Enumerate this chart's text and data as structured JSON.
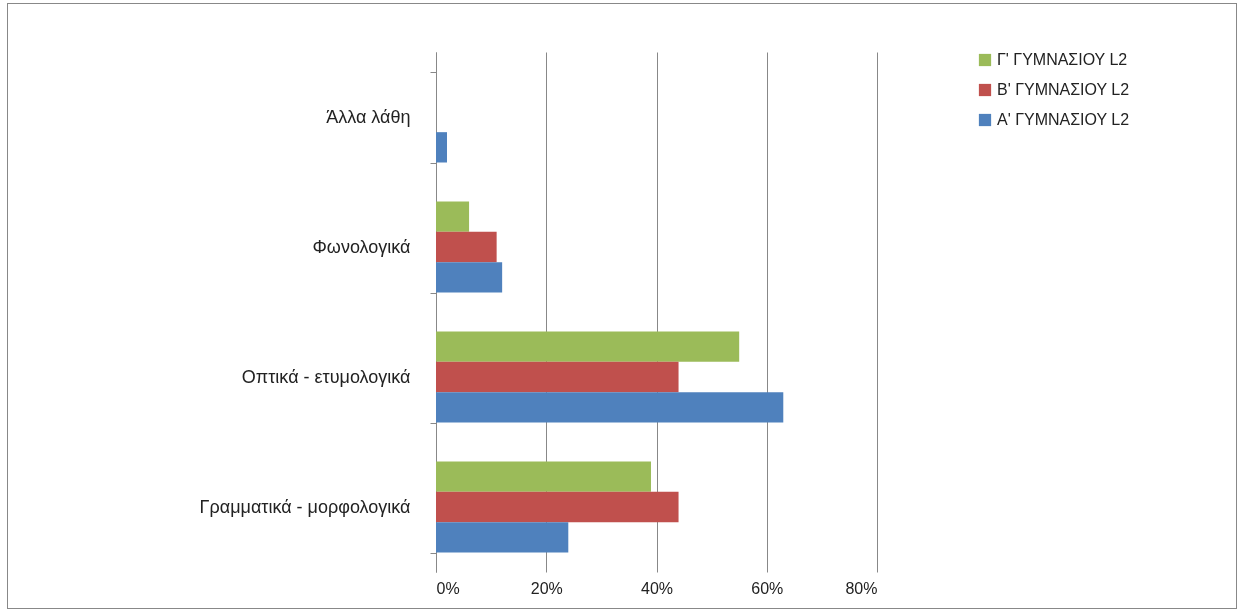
{
  "chart_data": {
    "type": "bar",
    "orientation": "horizontal",
    "categories": [
      "Άλλα λάθη",
      "Φωνολογικά",
      "Οπτικά - ετυμολογικά",
      "Γραμματικά - μορφολογικά"
    ],
    "series": [
      {
        "name": "Γ' ΓΥΜΝΑΣΙΟΥ  L2",
        "color": "#9bbb59",
        "values": [
          0,
          6,
          55,
          39
        ]
      },
      {
        "name": "Β' ΓΥΜΝΑΣΙΟΥ L2",
        "color": "#c0504d",
        "values": [
          0,
          11,
          44,
          44
        ]
      },
      {
        "name": "Α' ΓΥΜΝΑΣΙΟΥ L2",
        "color": "#4f81bd",
        "values": [
          2,
          12,
          63,
          24
        ]
      }
    ],
    "xlim": [
      0,
      80
    ],
    "xticks": [
      {
        "value": 0,
        "label": "0%"
      },
      {
        "value": 20,
        "label": "20%"
      },
      {
        "value": 40,
        "label": "40%"
      },
      {
        "value": 60,
        "label": "60%"
      },
      {
        "value": 80,
        "label": "80%"
      }
    ],
    "grid": "x",
    "legend": "right"
  }
}
